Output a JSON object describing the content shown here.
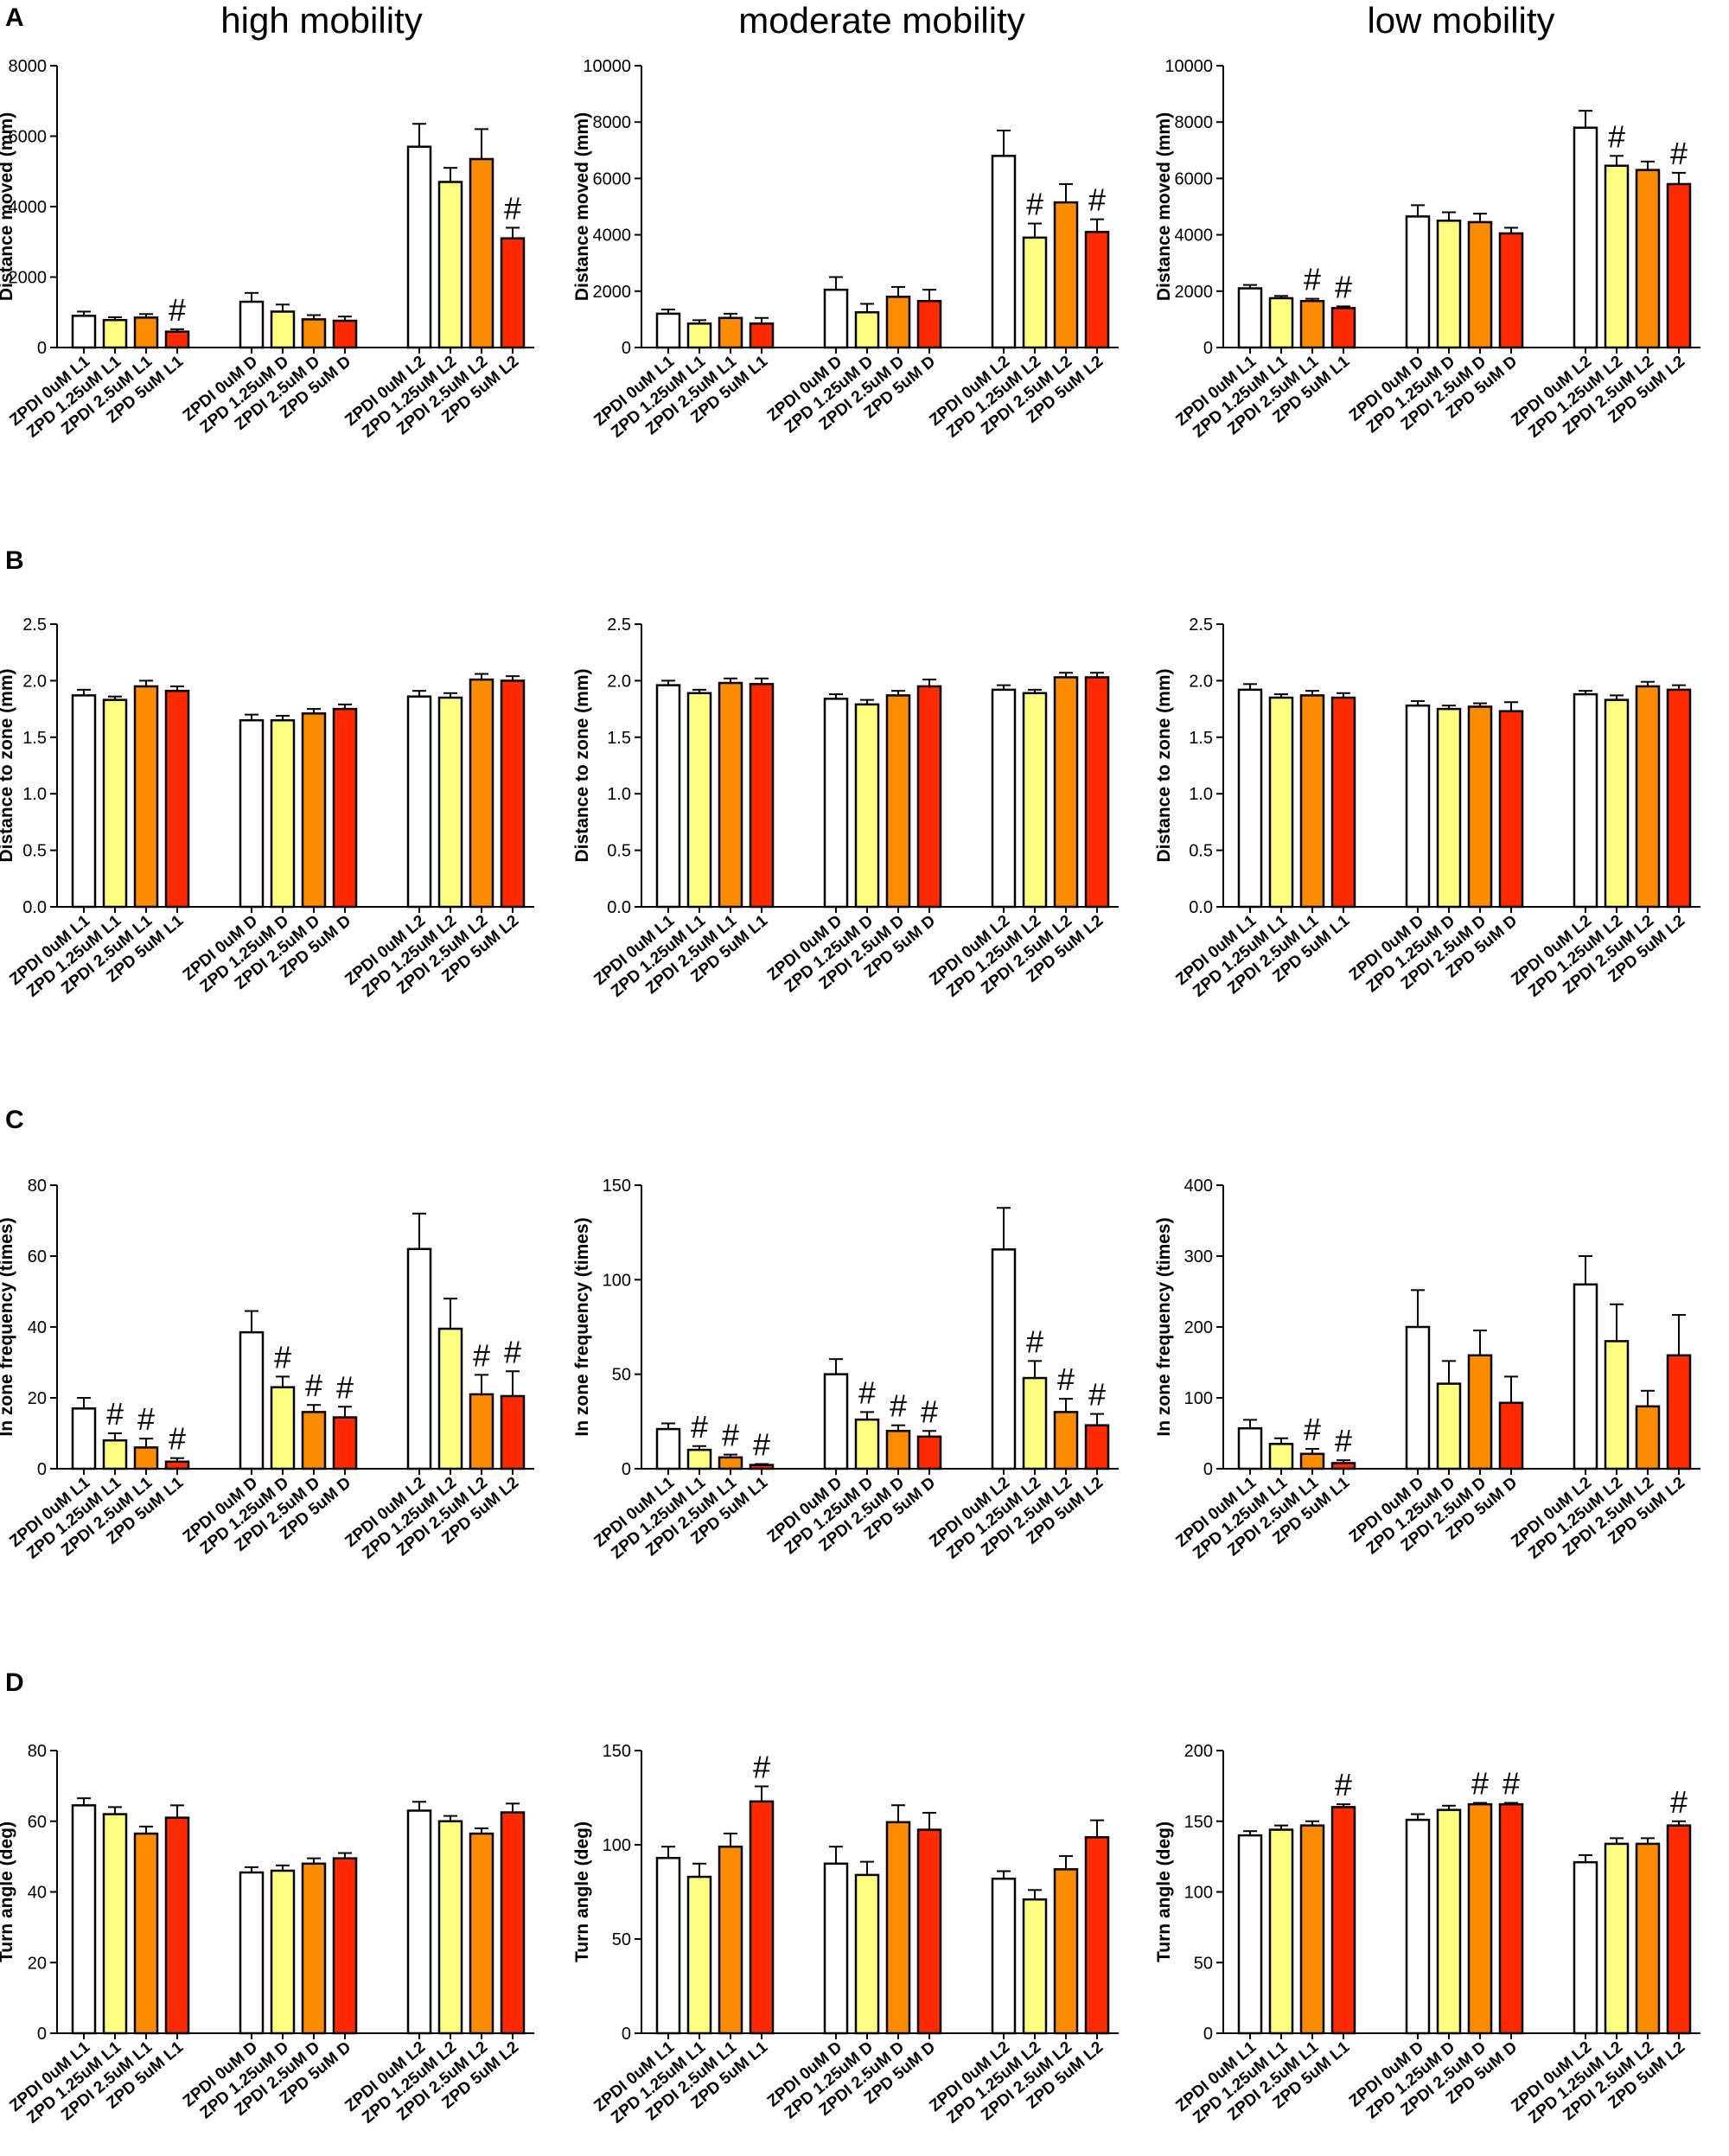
{
  "figure": {
    "panel_labels": [
      "A",
      "B",
      "C",
      "D"
    ],
    "column_titles": [
      "high mobility",
      "moderate mobility",
      "low mobility"
    ]
  },
  "colors": {
    "bar_0uM": "#ffffff",
    "bar_1.25uM": "#ffff80",
    "bar_2.5uM": "#ff8c00",
    "bar_5uM": "#ff2a00",
    "axis": "#000000"
  },
  "categories_L1": [
    "ZPDI 0uM L1",
    "ZPD 1.25uM L1",
    "ZPDI 2.5uM L1",
    "ZPD 5uM L1"
  ],
  "categories_D": [
    "ZPDI 0uM D",
    "ZPD 1.25uM D",
    "ZPDI 2.5uM D",
    "ZPD 5uM D"
  ],
  "categories_L2": [
    "ZPDI 0uM L2",
    "ZPD 1.25uM L2",
    "ZPDI 2.5uM L2",
    "ZPD 5uM L2"
  ],
  "chart_data": [
    {
      "type": "bar",
      "panel": "A",
      "title": "high mobility",
      "ylabel": "Distance moved (mm)",
      "ylim": [
        0,
        8000
      ],
      "yticks": [
        0,
        2000,
        4000,
        6000,
        8000
      ],
      "categories": [
        "ZPDI 0uM L1",
        "ZPD 1.25uM L1",
        "ZPDI 2.5uM L1",
        "ZPD 5uM L1",
        "ZPDI 0uM D",
        "ZPD 1.25uM D",
        "ZPDI 2.5uM D",
        "ZPD 5uM D",
        "ZPDI 0uM L2",
        "ZPD 1.25uM L2",
        "ZPDI 2.5uM L2",
        "ZPD 5uM L2"
      ],
      "values": [
        900,
        780,
        850,
        450,
        1300,
        1020,
        800,
        760,
        5700,
        4700,
        5350,
        3100
      ],
      "errors": [
        120,
        80,
        100,
        70,
        250,
        200,
        120,
        120,
        650,
        400,
        850,
        300
      ],
      "annotations": [
        "",
        "",
        "",
        "#",
        "",
        "",
        "",
        "",
        "",
        "",
        "",
        "#"
      ]
    },
    {
      "type": "bar",
      "panel": "A",
      "title": "moderate mobility",
      "ylabel": "Distance moved (mm)",
      "ylim": [
        0,
        10000
      ],
      "yticks": [
        0,
        2000,
        4000,
        6000,
        8000,
        10000
      ],
      "categories": [
        "ZPDI 0uM L1",
        "ZPD 1.25uM L1",
        "ZPDI 2.5uM L1",
        "ZPD 5uM L1",
        "ZPDI 0uM D",
        "ZPD 1.25uM D",
        "ZPDI 2.5uM D",
        "ZPD 5uM D",
        "ZPDI 0uM L2",
        "ZPD 1.25uM L2",
        "ZPDI 2.5uM L2",
        "ZPD 5uM L2"
      ],
      "values": [
        1200,
        850,
        1050,
        850,
        2050,
        1250,
        1800,
        1650,
        6800,
        3900,
        5150,
        4100
      ],
      "errors": [
        150,
        120,
        150,
        200,
        450,
        300,
        350,
        400,
        900,
        500,
        650,
        450
      ],
      "annotations": [
        "",
        "",
        "",
        "",
        "",
        "",
        "",
        "",
        "",
        "#",
        "",
        "#"
      ]
    },
    {
      "type": "bar",
      "panel": "A",
      "title": "low mobility",
      "ylabel": "Distance moved (mm)",
      "ylim": [
        0,
        10000
      ],
      "yticks": [
        0,
        2000,
        4000,
        6000,
        8000,
        10000
      ],
      "categories": [
        "ZPDI 0uM L1",
        "ZPD 1.25uM L1",
        "ZPDI 2.5uM L1",
        "ZPD 5uM L1",
        "ZPDI 0uM D",
        "ZPD 1.25uM D",
        "ZPDI 2.5uM D",
        "ZPD 5uM D",
        "ZPDI 0uM L2",
        "ZPD 1.25uM L2",
        "ZPDI 2.5uM L2",
        "ZPD 5uM L2"
      ],
      "values": [
        2100,
        1750,
        1650,
        1400,
        4650,
        4500,
        4450,
        4050,
        7800,
        6450,
        6300,
        5800
      ],
      "errors": [
        120,
        80,
        80,
        60,
        400,
        300,
        300,
        200,
        600,
        350,
        300,
        400
      ],
      "annotations": [
        "",
        "",
        "#",
        "#",
        "",
        "",
        "",
        "",
        "",
        "#",
        "",
        "#"
      ]
    },
    {
      "type": "bar",
      "panel": "B",
      "title": "high mobility",
      "ylabel": "Distance to zone (mm)",
      "ylim": [
        0,
        2.5
      ],
      "yticks": [
        "0.0",
        "0.5",
        "1.0",
        "1.5",
        "2.0",
        "2.5"
      ],
      "categories": [
        "ZPDI 0uM L1",
        "ZPD 1.25uM L1",
        "ZPDI 2.5uM L1",
        "ZPD 5uM L1",
        "ZPDI 0uM D",
        "ZPD 1.25uM D",
        "ZPDI 2.5uM D",
        "ZPD 5uM D",
        "ZPDI 0uM L2",
        "ZPD 1.25uM L2",
        "ZPDI 2.5uM L2",
        "ZPD 5uM L2"
      ],
      "values": [
        1.87,
        1.83,
        1.95,
        1.91,
        1.65,
        1.65,
        1.71,
        1.75,
        1.86,
        1.85,
        2.01,
        2.0
      ],
      "errors": [
        0.05,
        0.03,
        0.05,
        0.04,
        0.05,
        0.04,
        0.04,
        0.04,
        0.05,
        0.04,
        0.05,
        0.04
      ],
      "annotations": [
        "",
        "",
        "",
        "",
        "",
        "",
        "",
        "",
        "",
        "",
        "",
        ""
      ]
    },
    {
      "type": "bar",
      "panel": "B",
      "title": "moderate mobility",
      "ylabel": "Distance to zone (mm)",
      "ylim": [
        0,
        2.5
      ],
      "yticks": [
        "0.0",
        "0.5",
        "1.0",
        "1.5",
        "2.0",
        "2.5"
      ],
      "categories": [
        "ZPDI 0uM L1",
        "ZPD 1.25uM L1",
        "ZPDI 2.5uM L1",
        "ZPD 5uM L1",
        "ZPDI 0uM D",
        "ZPD 1.25uM D",
        "ZPDI 2.5uM D",
        "ZPD 5uM D",
        "ZPDI 0uM L2",
        "ZPD 1.25uM L2",
        "ZPDI 2.5uM L2",
        "ZPD 5uM L2"
      ],
      "values": [
        1.96,
        1.89,
        1.98,
        1.97,
        1.84,
        1.79,
        1.87,
        1.95,
        1.92,
        1.89,
        2.03,
        2.03
      ],
      "errors": [
        0.04,
        0.03,
        0.04,
        0.05,
        0.04,
        0.04,
        0.04,
        0.06,
        0.04,
        0.03,
        0.04,
        0.04
      ],
      "annotations": [
        "",
        "",
        "",
        "",
        "",
        "",
        "",
        "",
        "",
        "",
        "",
        ""
      ]
    },
    {
      "type": "bar",
      "panel": "B",
      "title": "low mobility",
      "ylabel": "Distance to zone (mm)",
      "ylim": [
        0,
        2.5
      ],
      "yticks": [
        "0.0",
        "0.5",
        "1.0",
        "1.5",
        "2.0",
        "2.5"
      ],
      "categories": [
        "ZPDI 0uM L1",
        "ZPD 1.25uM L1",
        "ZPDI 2.5uM L1",
        "ZPD 5uM L1",
        "ZPDI 0uM D",
        "ZPD 1.25uM D",
        "ZPDI 2.5uM D",
        "ZPD 5uM D",
        "ZPDI 0uM L2",
        "ZPD 1.25uM L2",
        "ZPDI 2.5uM L2",
        "ZPD 5uM L2"
      ],
      "values": [
        1.92,
        1.85,
        1.87,
        1.85,
        1.78,
        1.75,
        1.77,
        1.73,
        1.88,
        1.83,
        1.95,
        1.92
      ],
      "errors": [
        0.05,
        0.03,
        0.04,
        0.04,
        0.04,
        0.03,
        0.03,
        0.08,
        0.03,
        0.04,
        0.04,
        0.04
      ],
      "annotations": [
        "",
        "",
        "",
        "",
        "",
        "",
        "",
        "",
        "",
        "",
        "",
        ""
      ]
    },
    {
      "type": "bar",
      "panel": "C",
      "title": "high mobility",
      "ylabel": "In zone frequency (times)",
      "ylim": [
        0,
        80
      ],
      "yticks": [
        0,
        20,
        40,
        60,
        80
      ],
      "categories": [
        "ZPDI 0uM L1",
        "ZPD 1.25uM L1",
        "ZPDI 2.5uM L1",
        "ZPD 5uM L1",
        "ZPDI 0uM D",
        "ZPD 1.25uM D",
        "ZPDI 2.5uM D",
        "ZPD 5uM D",
        "ZPDI 0uM L2",
        "ZPD 1.25uM L2",
        "ZPDI 2.5uM L2",
        "ZPD 5uM L2"
      ],
      "values": [
        17,
        8,
        6,
        2,
        38.5,
        23,
        16,
        14.5,
        62,
        39.5,
        21,
        20.5
      ],
      "errors": [
        3,
        2,
        2.5,
        1,
        6,
        3,
        2,
        3,
        10,
        8.5,
        5.5,
        7
      ],
      "annotations": [
        "",
        "#",
        "#",
        "#",
        "",
        "#",
        "#",
        "#",
        "",
        "",
        "#",
        "#"
      ]
    },
    {
      "type": "bar",
      "panel": "C",
      "title": "moderate mobility",
      "ylabel": "In zone frequency (times)",
      "ylim": [
        0,
        150
      ],
      "yticks": [
        0,
        50,
        100,
        150
      ],
      "categories": [
        "ZPDI 0uM L1",
        "ZPD 1.25uM L1",
        "ZPDI 2.5uM L1",
        "ZPD 5uM L1",
        "ZPDI 0uM D",
        "ZPD 1.25uM D",
        "ZPDI 2.5uM D",
        "ZPD 5uM D",
        "ZPDI 0uM L2",
        "ZPD 1.25uM L2",
        "ZPDI 2.5uM L2",
        "ZPD 5uM L2"
      ],
      "values": [
        21,
        10,
        6,
        2,
        50,
        26,
        20,
        17,
        116,
        48,
        30,
        23
      ],
      "errors": [
        3,
        2,
        1.5,
        0.5,
        8,
        4,
        3,
        3,
        22,
        9,
        7,
        6
      ],
      "annotations": [
        "",
        "#",
        "#",
        "#",
        "",
        "#",
        "#",
        "#",
        "",
        "#",
        "#",
        "#"
      ]
    },
    {
      "type": "bar",
      "panel": "C",
      "title": "low mobility",
      "ylabel": "In zone frequency (times)",
      "ylim": [
        0,
        400
      ],
      "yticks": [
        0,
        100,
        200,
        300,
        400
      ],
      "categories": [
        "ZPDI 0uM L1",
        "ZPD 1.25uM L1",
        "ZPDI 2.5uM L1",
        "ZPD 5uM L1",
        "ZPDI 0uM D",
        "ZPD 1.25uM D",
        "ZPDI 2.5uM D",
        "ZPD 5uM D",
        "ZPDI 0uM L2",
        "ZPD 1.25uM L2",
        "ZPDI 2.5uM L2",
        "ZPD 5uM L2"
      ],
      "values": [
        57,
        35,
        21,
        8,
        200,
        120,
        160,
        93,
        260,
        180,
        88,
        160
      ],
      "errors": [
        12,
        8,
        7,
        4,
        52,
        32,
        35,
        37,
        40,
        52,
        22,
        57
      ],
      "annotations": [
        "",
        "",
        "#",
        "#",
        "",
        "",
        "",
        "",
        "",
        "",
        "",
        ""
      ]
    },
    {
      "type": "bar",
      "panel": "D",
      "title": "high mobility",
      "ylabel": "Turn angle (deg)",
      "ylim": [
        0,
        80
      ],
      "yticks": [
        0,
        20,
        40,
        60,
        80
      ],
      "categories": [
        "ZPDI 0uM L1",
        "ZPD 1.25uM L1",
        "ZPDI 2.5uM L1",
        "ZPD 5uM L1",
        "ZPDI 0uM D",
        "ZPD 1.25uM D",
        "ZPDI 2.5uM D",
        "ZPD 5uM D",
        "ZPDI 0uM L2",
        "ZPD 1.25uM L2",
        "ZPDI 2.5uM L2",
        "ZPD 5uM L2"
      ],
      "values": [
        64.5,
        62,
        56.5,
        61,
        45.5,
        46,
        48,
        49.5,
        63,
        60,
        56.5,
        62.5
      ],
      "errors": [
        2,
        2,
        2,
        3.5,
        1.5,
        1.5,
        1.5,
        1.5,
        2.5,
        1.5,
        1.5,
        2.5
      ],
      "annotations": [
        "",
        "",
        "",
        "",
        "",
        "",
        "",
        "",
        "",
        "",
        "",
        ""
      ]
    },
    {
      "type": "bar",
      "panel": "D",
      "title": "moderate mobility",
      "ylabel": "Turn angle (deg)",
      "ylim": [
        0,
        150
      ],
      "yticks": [
        0,
        50,
        100,
        150
      ],
      "categories": [
        "ZPDI 0uM L1",
        "ZPD 1.25uM L1",
        "ZPDI 2.5uM L1",
        "ZPD 5uM L1",
        "ZPDI 0uM D",
        "ZPD 1.25uM D",
        "ZPDI 2.5uM D",
        "ZPD 5uM D",
        "ZPDI 0uM L2",
        "ZPD 1.25uM L2",
        "ZPDI 2.5uM L2",
        "ZPD 5uM L2"
      ],
      "values": [
        93,
        83,
        99,
        123,
        90,
        84,
        112,
        108,
        82,
        71,
        87,
        104
      ],
      "errors": [
        6,
        7,
        7,
        8,
        9,
        7,
        9,
        9,
        4,
        5,
        7,
        9
      ],
      "annotations": [
        "",
        "",
        "",
        "#",
        "",
        "",
        "",
        "",
        "",
        "",
        "",
        ""
      ]
    },
    {
      "type": "bar",
      "panel": "D",
      "title": "low mobility",
      "ylabel": "Turn angle (deg)",
      "ylim": [
        0,
        200
      ],
      "yticks": [
        0,
        50,
        100,
        150,
        200
      ],
      "categories": [
        "ZPDI 0uM L1",
        "ZPD 1.25uM L1",
        "ZPDI 2.5uM L1",
        "ZPD 5uM L1",
        "ZPDI 0uM D",
        "ZPD 1.25uM D",
        "ZPDI 2.5uM D",
        "ZPD 5uM D",
        "ZPDI 0uM L2",
        "ZPD 1.25uM L2",
        "ZPDI 2.5uM L2",
        "ZPD 5uM L2"
      ],
      "values": [
        140,
        144,
        147,
        160,
        151,
        158,
        162,
        162,
        121,
        134,
        134,
        147
      ],
      "errors": [
        3,
        3,
        3,
        2,
        4,
        3,
        1,
        1,
        5,
        4,
        4,
        3
      ],
      "annotations": [
        "",
        "",
        "",
        "#",
        "",
        "",
        "#",
        "#",
        "",
        "",
        "",
        "#"
      ]
    }
  ]
}
